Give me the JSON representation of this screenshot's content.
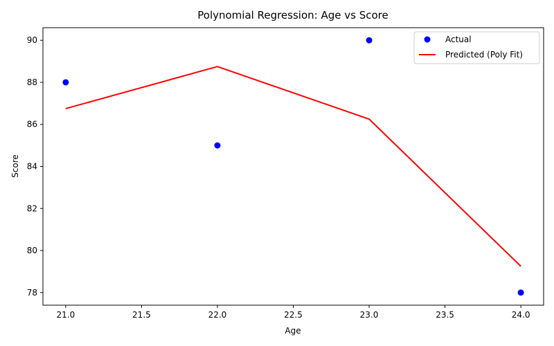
{
  "chart_data": {
    "type": "scatter",
    "title": "Polynomial Regression: Age vs Score",
    "xlabel": "Age",
    "ylabel": "Score",
    "xlim": [
      20.85,
      24.15
    ],
    "ylim": [
      77.4,
      90.6
    ],
    "xticks": [
      21.0,
      21.5,
      22.0,
      22.5,
      23.0,
      23.5,
      24.0
    ],
    "xtick_labels": [
      "21.0",
      "21.5",
      "22.0",
      "22.5",
      "23.0",
      "23.5",
      "24.0"
    ],
    "yticks": [
      78,
      80,
      82,
      84,
      86,
      88,
      90
    ],
    "ytick_labels": [
      "78",
      "80",
      "82",
      "84",
      "86",
      "88",
      "90"
    ],
    "grid": false,
    "legend_position": "top-right",
    "series": [
      {
        "name": "Actual",
        "type": "scatter",
        "color": "#0000ff",
        "x": [
          21,
          22,
          23,
          24
        ],
        "y": [
          88,
          85,
          90,
          78
        ]
      },
      {
        "name": "Predicted (Poly Fit)",
        "type": "line",
        "color": "#ff0000",
        "x": [
          21,
          22,
          23,
          24
        ],
        "y": [
          86.75,
          88.75,
          86.25,
          79.25
        ]
      }
    ]
  }
}
